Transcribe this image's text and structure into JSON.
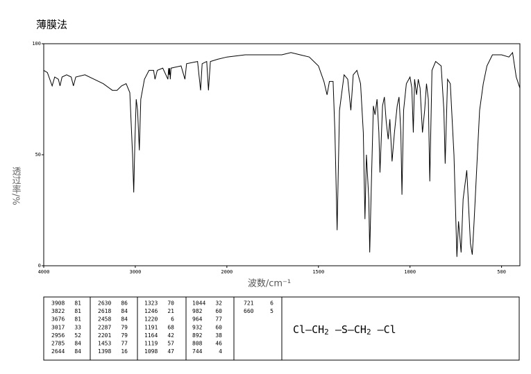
{
  "chart_data": {
    "type": "line",
    "title": "薄膜法",
    "xlabel": "波数/cm⁻¹",
    "ylabel": "透过率/%",
    "xlim": [
      4000,
      400
    ],
    "x_scale_break": 2000,
    "x_scale_factor": 2,
    "xticks": [
      4000,
      3000,
      2000,
      1500,
      1000,
      500
    ],
    "ylim": [
      0,
      100
    ],
    "yticks": [
      0,
      50,
      100
    ],
    "color": "#000000",
    "x": [
      4000,
      3960,
      3908,
      3880,
      3840,
      3822,
      3800,
      3750,
      3700,
      3676,
      3650,
      3550,
      3450,
      3350,
      3250,
      3200,
      3150,
      3100,
      3060,
      3030,
      3017,
      3005,
      2990,
      2975,
      2956,
      2940,
      2900,
      2850,
      2800,
      2785,
      2760,
      2700,
      2644,
      2636,
      2630,
      2625,
      2618,
      2610,
      2500,
      2458,
      2440,
      2320,
      2287,
      2270,
      2220,
      2201,
      2180,
      2100,
      2000,
      1900,
      1800,
      1700,
      1650,
      1600,
      1550,
      1500,
      1470,
      1453,
      1440,
      1420,
      1410,
      1398,
      1385,
      1360,
      1340,
      1323,
      1310,
      1290,
      1270,
      1255,
      1246,
      1238,
      1225,
      1220,
      1210,
      1200,
      1191,
      1180,
      1170,
      1164,
      1150,
      1140,
      1130,
      1119,
      1110,
      1098,
      1085,
      1070,
      1060,
      1050,
      1044,
      1035,
      1020,
      1000,
      990,
      982,
      975,
      964,
      955,
      945,
      932,
      920,
      910,
      900,
      892,
      880,
      860,
      830,
      815,
      808,
      795,
      780,
      760,
      744,
      735,
      721,
      710,
      690,
      670,
      660,
      650,
      620,
      600,
      580,
      550,
      500,
      460,
      440,
      420,
      400
    ],
    "values": [
      88,
      87,
      81,
      85,
      84,
      81,
      85,
      86,
      85,
      81,
      85,
      86,
      84,
      82,
      79,
      79,
      81,
      82,
      78,
      50,
      33,
      55,
      75,
      70,
      52,
      75,
      84,
      88,
      88,
      84,
      88,
      89,
      84,
      89,
      86,
      89,
      84,
      89,
      90,
      84,
      91,
      92,
      79,
      91,
      92,
      79,
      92,
      93,
      94,
      95,
      95,
      95,
      96,
      95,
      94,
      90,
      83,
      77,
      83,
      83,
      60,
      16,
      70,
      86,
      84,
      70,
      86,
      88,
      82,
      60,
      21,
      50,
      30,
      6,
      40,
      72,
      68,
      75,
      60,
      42,
      72,
      76,
      65,
      57,
      66,
      47,
      60,
      72,
      76,
      60,
      32,
      70,
      82,
      85,
      80,
      60,
      84,
      77,
      84,
      80,
      60,
      70,
      82,
      75,
      38,
      88,
      92,
      90,
      70,
      46,
      84,
      82,
      50,
      4,
      20,
      6,
      30,
      43,
      10,
      5,
      20,
      70,
      82,
      90,
      95,
      95,
      94,
      96,
      85,
      80
    ]
  },
  "peak_table": {
    "columns": [
      [
        [
          3908,
          81
        ],
        [
          3822,
          81
        ],
        [
          3676,
          81
        ],
        [
          3017,
          33
        ],
        [
          2956,
          52
        ],
        [
          2785,
          84
        ],
        [
          2644,
          84
        ]
      ],
      [
        [
          2630,
          86
        ],
        [
          2618,
          84
        ],
        [
          2458,
          84
        ],
        [
          2287,
          79
        ],
        [
          2201,
          79
        ],
        [
          1453,
          77
        ],
        [
          1398,
          16
        ]
      ],
      [
        [
          1323,
          70
        ],
        [
          1246,
          21
        ],
        [
          1220,
          6
        ],
        [
          1191,
          68
        ],
        [
          1164,
          42
        ],
        [
          1119,
          57
        ],
        [
          1098,
          47
        ]
      ],
      [
        [
          1044,
          32
        ],
        [
          982,
          60
        ],
        [
          964,
          77
        ],
        [
          932,
          60
        ],
        [
          892,
          38
        ],
        [
          808,
          46
        ],
        [
          744,
          4
        ]
      ],
      [
        [
          721,
          6
        ],
        [
          660,
          5
        ]
      ]
    ]
  },
  "structure": [
    {
      "text": "Cl"
    },
    {
      "text": "CH",
      "sub": "2"
    },
    {
      "text": "S"
    },
    {
      "text": "CH",
      "sub": "2"
    },
    {
      "text": "Cl"
    }
  ]
}
